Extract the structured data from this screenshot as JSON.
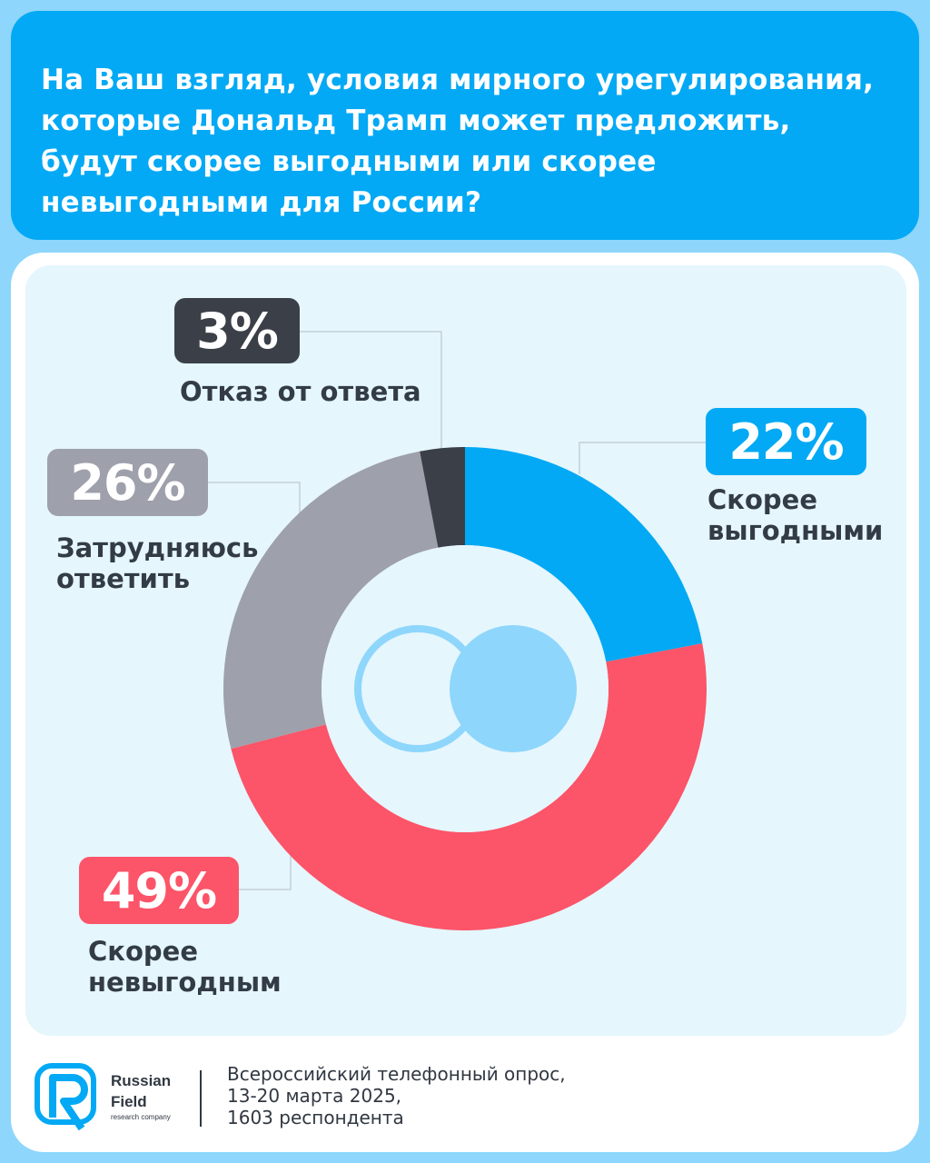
{
  "question": "На Ваш взгляд, условия мирного урегулирования, которые Дональд Трамп может предложить, будут скорее выгодными или скорее невыгодными для России?",
  "chart_data": {
    "type": "pie",
    "variant": "donut",
    "unit": "%",
    "slices": [
      {
        "label": "Скорее выгодными",
        "label_lines": [
          "Скорее",
          "выгодными"
        ],
        "value": 22,
        "display": "22%",
        "color": "#03a9f4"
      },
      {
        "label": "Скорее невыгодным",
        "label_lines": [
          "Скорее",
          "невыгодным"
        ],
        "value": 49,
        "display": "49%",
        "color": "#fc5468"
      },
      {
        "label": "Затрудняюсь ответить",
        "label_lines": [
          "Затрудняюсь",
          "ответить"
        ],
        "value": 26,
        "display": "26%",
        "color": "#9ea0ab"
      },
      {
        "label": "Отказ от ответа",
        "label_lines": [
          "Отказ от ответа"
        ],
        "value": 3,
        "display": "3%",
        "color": "#3b4048"
      }
    ]
  },
  "footer": {
    "brand_line1": "Russian",
    "brand_line2": "Field",
    "brand_sub": "research company",
    "source_lines": [
      "Всероссийский телефонный опрос,",
      "13-20 марта 2025,",
      "1603 респондента"
    ]
  },
  "colors": {
    "page_bg": "#8ed6fb",
    "header_bg": "#03a9f4",
    "panel_bg": "#e5f6fd",
    "text_dark": "#333c46"
  }
}
